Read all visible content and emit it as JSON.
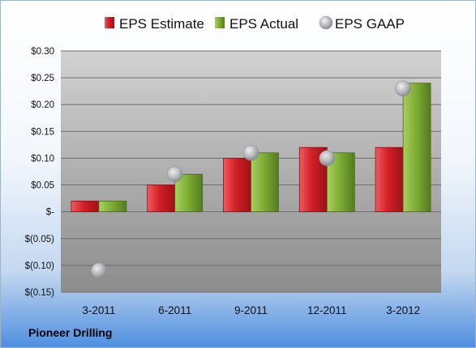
{
  "company": "Pioneer Drilling",
  "colors": {
    "estimate": "#d21f27",
    "actual": "#7fae35",
    "gaap": "#b8bcc2",
    "plot_top": "#d2d2d2",
    "plot_bottom": "#8c8c8c"
  },
  "chart_data": {
    "type": "bar",
    "categories": [
      "3-2011",
      "6-2011",
      "9-2011",
      "12-2011",
      "3-2012"
    ],
    "series": [
      {
        "name": "EPS Estimate",
        "kind": "bar",
        "values": [
          0.02,
          0.05,
          0.1,
          0.12,
          0.12
        ]
      },
      {
        "name": "EPS Actual",
        "kind": "bar",
        "values": [
          0.02,
          0.07,
          0.11,
          0.11,
          0.24
        ]
      },
      {
        "name": "EPS GAAP",
        "kind": "marker",
        "values": [
          -0.11,
          0.07,
          0.11,
          0.1,
          0.23
        ]
      }
    ],
    "ylim": [
      -0.15,
      0.3
    ],
    "yticks": [
      0.3,
      0.25,
      0.2,
      0.15,
      0.1,
      0.05,
      0,
      -0.05,
      -0.1,
      -0.15
    ],
    "ytick_labels": [
      "$0.30",
      "$0.25",
      "$0.20",
      "$0.15",
      "$0.10",
      "$0.05",
      "$-",
      "$(0.05)",
      "$(0.10)",
      "$(0.15)"
    ],
    "grid": true,
    "legend": "top"
  }
}
